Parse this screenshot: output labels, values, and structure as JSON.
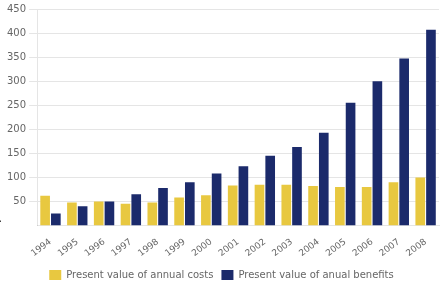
{
  "chart_data": {
    "type": "bar",
    "categories": [
      "1994",
      "1995",
      "1996",
      "1997",
      "1998",
      "1999",
      "2000",
      "2001",
      "2002",
      "2003",
      "2004",
      "2005",
      "2006",
      "2007",
      "2008"
    ],
    "series": [
      {
        "name": "Present value of annual costs",
        "color": "#E8C840",
        "values": [
          62,
          48,
          50,
          45,
          48,
          58,
          63,
          83,
          85,
          85,
          82,
          80,
          80,
          90,
          100
        ]
      },
      {
        "name": "Present value of anual benefits",
        "color": "#1B2A6B",
        "values": [
          25,
          40,
          50,
          65,
          78,
          90,
          108,
          123,
          145,
          163,
          193,
          255,
          300,
          347,
          407
        ]
      }
    ],
    "ylim": [
      0,
      450
    ],
    "yticks": [
      50,
      100,
      150,
      200,
      250,
      300,
      350,
      400,
      450
    ],
    "grid": true,
    "legend": "bottom",
    "annotations": [
      "."
    ]
  }
}
